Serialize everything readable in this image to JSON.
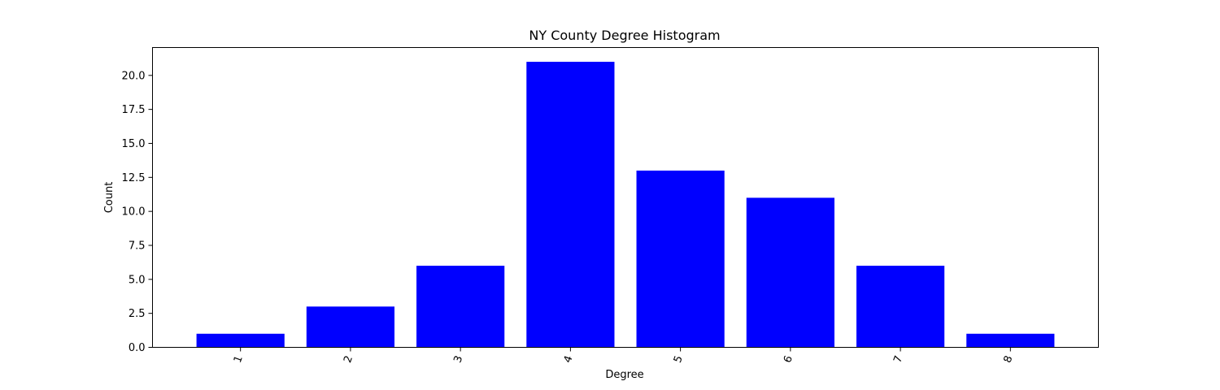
{
  "chart_data": {
    "type": "bar",
    "title": "NY County Degree Histogram",
    "xlabel": "Degree",
    "ylabel": "Count",
    "categories": [
      "1",
      "2",
      "3",
      "4",
      "5",
      "6",
      "7",
      "8"
    ],
    "values": [
      1,
      3,
      6,
      21,
      13,
      11,
      6,
      1
    ],
    "ylim": [
      0,
      22.05
    ],
    "yticks": [
      0.0,
      2.5,
      5.0,
      7.5,
      10.0,
      12.5,
      15.0,
      17.5,
      20.0
    ],
    "ytick_labels": [
      "0.0",
      "2.5",
      "5.0",
      "7.5",
      "10.0",
      "12.5",
      "15.0",
      "17.5",
      "20.0"
    ],
    "xtick_rotation_deg": -70,
    "bar_color": "#0000ff",
    "grid": false,
    "legend": false
  }
}
